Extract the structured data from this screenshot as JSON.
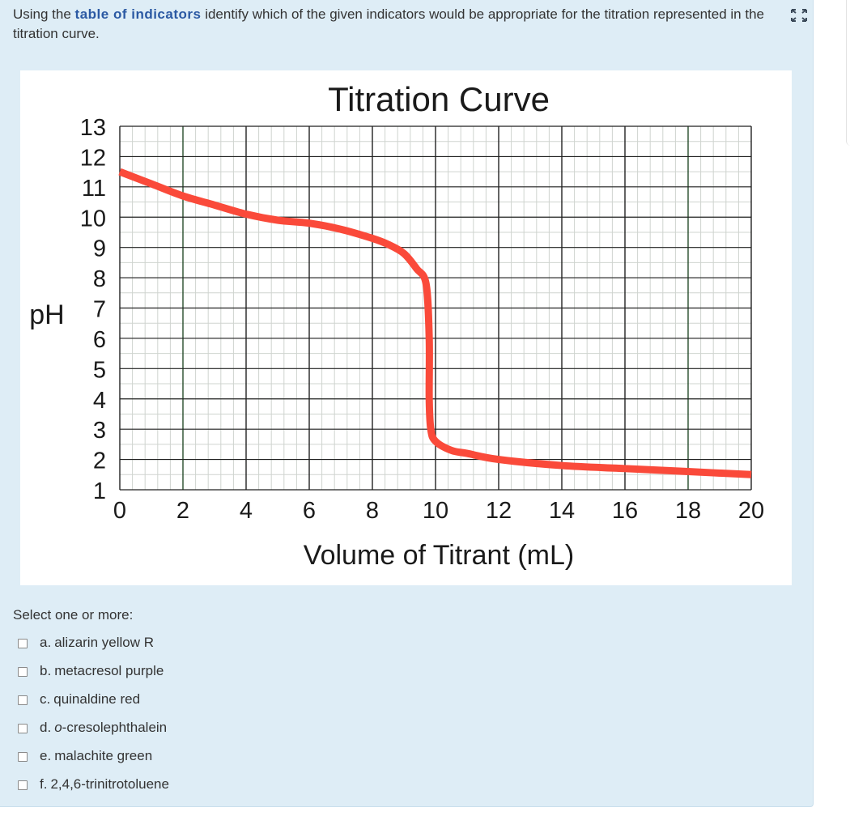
{
  "question": {
    "prefix": "Using the ",
    "link": "table of indicators",
    "suffix": " identify which of the given indicators would be appropriate for the titration represented in the titration curve."
  },
  "expand_icon": "expand-arrows-icon",
  "chart_data": {
    "type": "line",
    "title": "Titration Curve",
    "xlabel": "Volume of Titrant (mL)",
    "ylabel": "pH",
    "xlim": [
      0,
      20
    ],
    "ylim": [
      1,
      13
    ],
    "x_ticks": [
      "0",
      "2",
      "4",
      "6",
      "8",
      "10",
      "12",
      "14",
      "16",
      "18",
      "20"
    ],
    "y_ticks": [
      "13",
      "12",
      "11",
      "10",
      "9",
      "8",
      "7",
      "6",
      "5",
      "4",
      "3",
      "2",
      "1"
    ],
    "grid": true,
    "line_color": "#fa4a3a",
    "series": [
      {
        "x": [
          0,
          1,
          2,
          3,
          4,
          5,
          6,
          7,
          8,
          8.5,
          9,
          9.4,
          9.7,
          9.8,
          9.8,
          9.85,
          10,
          10.5,
          11,
          12,
          14,
          16,
          18,
          20
        ],
        "y": [
          11.5,
          11.1,
          10.7,
          10.4,
          10.1,
          9.9,
          9.8,
          9.6,
          9.3,
          9.1,
          8.8,
          8.3,
          7.8,
          6.0,
          4.0,
          3.0,
          2.6,
          2.3,
          2.2,
          2.0,
          1.8,
          1.7,
          1.6,
          1.5
        ]
      }
    ]
  },
  "select_label": "Select one or more:",
  "options": [
    {
      "letter": "a.",
      "text": "alizarin yellow R"
    },
    {
      "letter": "b.",
      "text": "metacresol purple"
    },
    {
      "letter": "c.",
      "text": "quinaldine red"
    },
    {
      "letter": "d.",
      "text": "o-cresolephthalein"
    },
    {
      "letter": "e.",
      "text": "malachite green"
    },
    {
      "letter": "f.",
      "text": "2,4,6-trinitrotoluene"
    }
  ]
}
